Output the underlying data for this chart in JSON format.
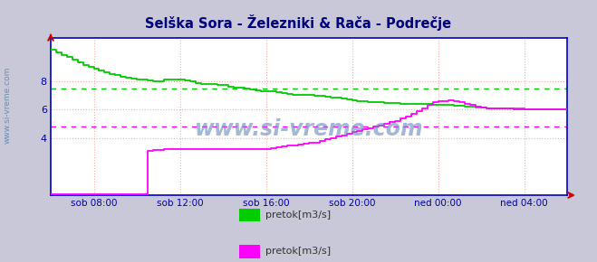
{
  "title": "Selška Sora - Železniki & Rača - Podrečje",
  "title_color": "#000080",
  "fig_bg_color": "#c8c8d8",
  "plot_bg_color": "#ffffff",
  "grid_color": "#ffaaaa",
  "axis_color": "#0000cc",
  "tick_color": "#0000aa",
  "watermark": "www.si-vreme.com",
  "watermark_color": "#6688bb",
  "left_label_color": "#5588aa",
  "ylim": [
    0,
    11.0
  ],
  "yticks": [
    4,
    6,
    8
  ],
  "xlim": [
    0,
    288
  ],
  "xtick_positions": [
    24,
    72,
    120,
    168,
    216,
    264
  ],
  "xtick_labels": [
    "sob 08:00",
    "sob 12:00",
    "sob 16:00",
    "sob 20:00",
    "ned 00:00",
    "ned 04:00"
  ],
  "green_avg_line": 7.47,
  "magenta_avg_line": 4.82,
  "legend": [
    {
      "label": "pretok[m3/s]",
      "color": "#00cc00"
    },
    {
      "label": "pretok[m3/s]",
      "color": "#ff00ff"
    }
  ],
  "green_x": [
    0,
    3,
    6,
    9,
    12,
    15,
    18,
    21,
    24,
    27,
    30,
    33,
    36,
    39,
    42,
    45,
    48,
    51,
    54,
    57,
    60,
    63,
    66,
    69,
    72,
    75,
    78,
    81,
    84,
    87,
    90,
    93,
    96,
    99,
    102,
    105,
    108,
    111,
    114,
    117,
    120,
    123,
    126,
    129,
    132,
    135,
    138,
    141,
    144,
    147,
    150,
    153,
    156,
    159,
    162,
    165,
    168,
    171,
    174,
    177,
    180,
    183,
    186,
    189,
    192,
    195,
    198,
    201,
    204,
    207,
    210,
    213,
    216,
    219,
    222,
    225,
    228,
    231,
    234,
    237,
    240,
    243,
    246,
    249,
    252,
    255,
    258,
    261,
    264,
    267,
    270,
    273,
    276,
    279,
    282,
    285,
    288
  ],
  "green_y": [
    10.2,
    10.0,
    9.8,
    9.7,
    9.5,
    9.3,
    9.1,
    9.0,
    8.85,
    8.7,
    8.6,
    8.5,
    8.4,
    8.3,
    8.2,
    8.15,
    8.1,
    8.1,
    8.05,
    8.0,
    8.0,
    8.1,
    8.1,
    8.1,
    8.1,
    8.05,
    7.95,
    7.85,
    7.8,
    7.8,
    7.75,
    7.7,
    7.7,
    7.6,
    7.55,
    7.5,
    7.45,
    7.4,
    7.35,
    7.3,
    7.3,
    7.25,
    7.2,
    7.15,
    7.1,
    7.05,
    7.0,
    7.0,
    7.0,
    6.95,
    6.95,
    6.9,
    6.85,
    6.8,
    6.75,
    6.7,
    6.65,
    6.6,
    6.55,
    6.5,
    6.5,
    6.5,
    6.45,
    6.45,
    6.45,
    6.4,
    6.4,
    6.4,
    6.4,
    6.4,
    6.4,
    6.35,
    6.3,
    6.3,
    6.3,
    6.25,
    6.25,
    6.2,
    6.2,
    6.15,
    6.15,
    6.1,
    6.1,
    6.1,
    6.1,
    6.05,
    6.05,
    6.05,
    6.0,
    6.0,
    6.0,
    6.0,
    6.0,
    6.0,
    6.0,
    6.0,
    6.0
  ],
  "magenta_x": [
    0,
    3,
    6,
    9,
    12,
    15,
    18,
    21,
    24,
    27,
    30,
    33,
    36,
    39,
    42,
    45,
    48,
    51,
    54,
    57,
    60,
    63,
    66,
    69,
    72,
    75,
    78,
    81,
    84,
    87,
    90,
    93,
    96,
    99,
    102,
    105,
    108,
    111,
    114,
    117,
    120,
    123,
    126,
    129,
    132,
    135,
    138,
    141,
    144,
    147,
    150,
    153,
    156,
    159,
    162,
    165,
    168,
    171,
    174,
    177,
    180,
    183,
    186,
    189,
    192,
    195,
    198,
    201,
    204,
    207,
    210,
    213,
    216,
    219,
    222,
    225,
    228,
    231,
    234,
    237,
    240,
    243,
    246,
    249,
    252,
    255,
    258,
    261,
    264,
    267,
    270,
    273,
    276,
    279,
    282,
    285,
    288
  ],
  "magenta_y": [
    0.05,
    0.05,
    0.05,
    0.05,
    0.05,
    0.05,
    0.05,
    0.05,
    0.05,
    0.05,
    0.05,
    0.05,
    0.05,
    0.05,
    0.05,
    0.05,
    0.05,
    0.05,
    3.1,
    3.15,
    3.15,
    3.2,
    3.2,
    3.2,
    3.2,
    3.2,
    3.2,
    3.2,
    3.2,
    3.2,
    3.2,
    3.2,
    3.2,
    3.2,
    3.2,
    3.2,
    3.2,
    3.2,
    3.2,
    3.2,
    3.2,
    3.3,
    3.35,
    3.4,
    3.45,
    3.5,
    3.55,
    3.6,
    3.65,
    3.7,
    3.8,
    3.9,
    4.0,
    4.1,
    4.2,
    4.3,
    4.4,
    4.5,
    4.6,
    4.7,
    4.8,
    4.9,
    5.0,
    5.1,
    5.2,
    5.35,
    5.5,
    5.7,
    5.9,
    6.1,
    6.3,
    6.5,
    6.55,
    6.6,
    6.65,
    6.6,
    6.5,
    6.4,
    6.3,
    6.2,
    6.15,
    6.1,
    6.1,
    6.1,
    6.05,
    6.05,
    6.0,
    6.0,
    6.0,
    6.0,
    6.0,
    6.0,
    6.0,
    6.0,
    6.0,
    6.0,
    6.0
  ]
}
